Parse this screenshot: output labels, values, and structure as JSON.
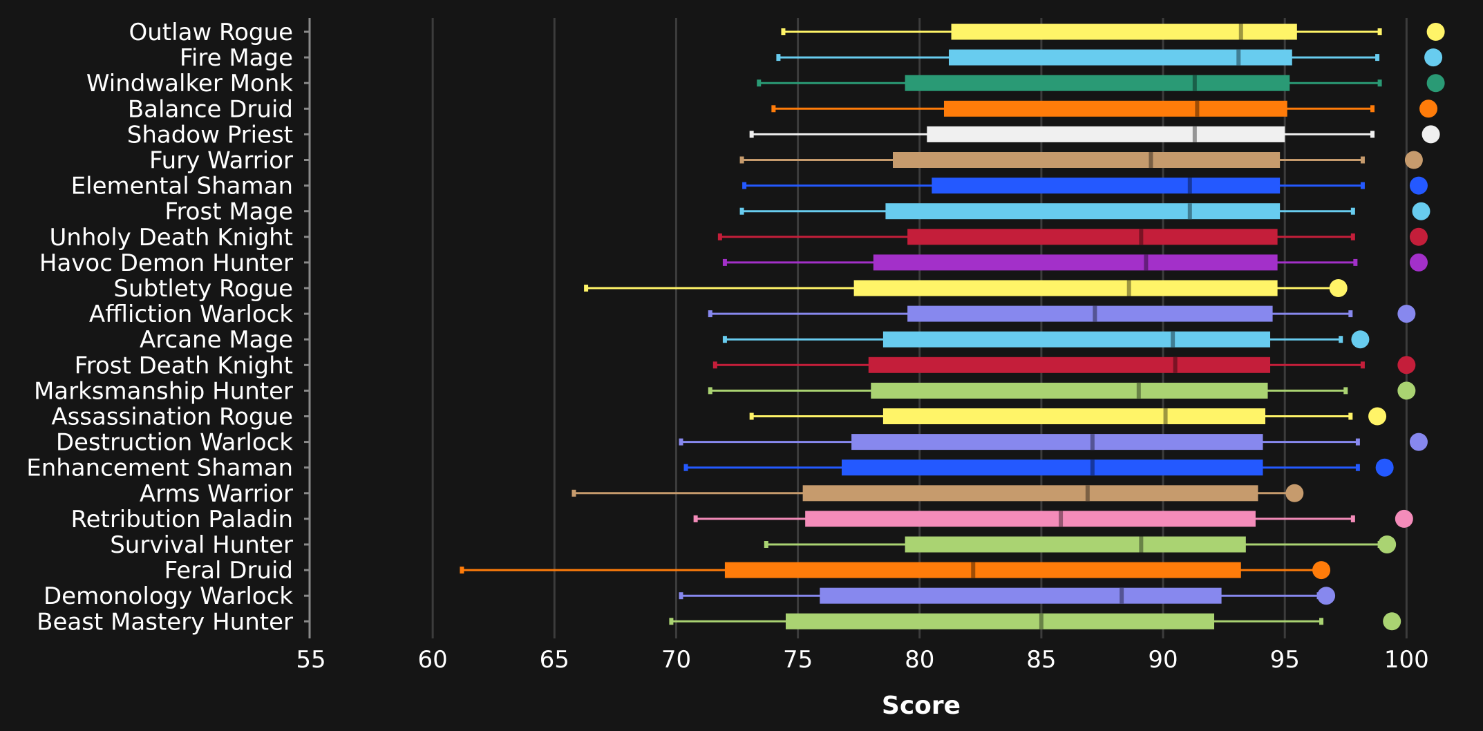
{
  "chart_data": {
    "type": "boxplot",
    "xlabel": "Score",
    "xlim": [
      55,
      101.5
    ],
    "xticks": [
      55,
      60,
      65,
      70,
      75,
      80,
      85,
      90,
      95,
      100
    ],
    "grid": "vertical",
    "series": [
      {
        "name": "Outlaw Rogue",
        "color": "#fff468",
        "min": 74.4,
        "q1": 81.3,
        "median": 93.2,
        "q3": 95.5,
        "max": 98.9,
        "outlier": 101.2
      },
      {
        "name": "Fire Mage",
        "color": "#68ccef",
        "min": 74.2,
        "q1": 81.2,
        "median": 93.1,
        "q3": 95.3,
        "max": 98.8,
        "outlier": 101.1
      },
      {
        "name": "Windwalker Monk",
        "color": "#2a9a75",
        "min": 73.4,
        "q1": 79.4,
        "median": 91.3,
        "q3": 95.2,
        "max": 98.9,
        "outlier": 101.2
      },
      {
        "name": "Balance Druid",
        "color": "#ff7c0a",
        "min": 74.0,
        "q1": 81.0,
        "median": 91.4,
        "q3": 95.1,
        "max": 98.6,
        "outlier": 100.9
      },
      {
        "name": "Shadow Priest",
        "color": "#f0f0f0",
        "min": 73.1,
        "q1": 80.3,
        "median": 91.3,
        "q3": 95.0,
        "max": 98.6,
        "outlier": 101.0
      },
      {
        "name": "Fury Warrior",
        "color": "#c69b6d",
        "min": 72.7,
        "q1": 78.9,
        "median": 89.5,
        "q3": 94.8,
        "max": 98.2,
        "outlier": 100.3
      },
      {
        "name": "Elemental Shaman",
        "color": "#2459ff",
        "min": 72.8,
        "q1": 80.5,
        "median": 91.1,
        "q3": 94.8,
        "max": 98.2,
        "outlier": 100.5
      },
      {
        "name": "Frost Mage",
        "color": "#68ccef",
        "min": 72.7,
        "q1": 78.6,
        "median": 91.1,
        "q3": 94.8,
        "max": 97.8,
        "outlier": 100.6
      },
      {
        "name": "Unholy Death Knight",
        "color": "#c41e3a",
        "min": 71.8,
        "q1": 79.5,
        "median": 89.1,
        "q3": 94.7,
        "max": 97.8,
        "outlier": 100.5
      },
      {
        "name": "Havoc Demon Hunter",
        "color": "#a330c9",
        "min": 72.0,
        "q1": 78.1,
        "median": 89.3,
        "q3": 94.7,
        "max": 97.9,
        "outlier": 100.5
      },
      {
        "name": "Subtlety Rogue",
        "color": "#fff468",
        "min": 66.3,
        "q1": 77.3,
        "median": 88.6,
        "q3": 94.7,
        "max": 97.1,
        "outlier": 97.2
      },
      {
        "name": "Affliction Warlock",
        "color": "#8788ee",
        "min": 71.4,
        "q1": 79.5,
        "median": 87.2,
        "q3": 94.5,
        "max": 97.7,
        "outlier": 100.0
      },
      {
        "name": "Arcane Mage",
        "color": "#68ccef",
        "min": 72.0,
        "q1": 78.5,
        "median": 90.4,
        "q3": 94.4,
        "max": 97.3,
        "outlier": 98.1
      },
      {
        "name": "Frost Death Knight",
        "color": "#c41e3a",
        "min": 71.6,
        "q1": 77.9,
        "median": 90.5,
        "q3": 94.4,
        "max": 98.2,
        "outlier": 100.0
      },
      {
        "name": "Marksmanship Hunter",
        "color": "#aad372",
        "min": 71.4,
        "q1": 78.0,
        "median": 89.0,
        "q3": 94.3,
        "max": 97.5,
        "outlier": 100.0
      },
      {
        "name": "Assassination Rogue",
        "color": "#fff468",
        "min": 73.1,
        "q1": 78.5,
        "median": 90.1,
        "q3": 94.2,
        "max": 97.7,
        "outlier": 98.8
      },
      {
        "name": "Destruction Warlock",
        "color": "#8788ee",
        "min": 70.2,
        "q1": 77.2,
        "median": 87.1,
        "q3": 94.1,
        "max": 98.0,
        "outlier": 100.5
      },
      {
        "name": "Enhancement Shaman",
        "color": "#2459ff",
        "min": 70.4,
        "q1": 76.8,
        "median": 87.1,
        "q3": 94.1,
        "max": 98.0,
        "outlier": 99.1
      },
      {
        "name": "Arms Warrior",
        "color": "#c69b6d",
        "min": 65.8,
        "q1": 75.2,
        "median": 86.9,
        "q3": 93.9,
        "max": 95.3,
        "outlier": 95.4
      },
      {
        "name": "Retribution Paladin",
        "color": "#f48cba",
        "min": 70.8,
        "q1": 75.3,
        "median": 85.8,
        "q3": 93.8,
        "max": 97.8,
        "outlier": 99.9
      },
      {
        "name": "Survival Hunter",
        "color": "#aad372",
        "min": 73.7,
        "q1": 79.4,
        "median": 89.1,
        "q3": 93.4,
        "max": 98.9,
        "outlier": 99.2
      },
      {
        "name": "Feral Druid",
        "color": "#ff7c0a",
        "min": 61.2,
        "q1": 72.0,
        "median": 82.2,
        "q3": 93.2,
        "max": 96.3,
        "outlier": 96.5
      },
      {
        "name": "Demonology Warlock",
        "color": "#8788ee",
        "min": 70.2,
        "q1": 75.9,
        "median": 88.3,
        "q3": 92.4,
        "max": 96.4,
        "outlier": 96.7
      },
      {
        "name": "Beast Mastery Hunter",
        "color": "#aad372",
        "min": 69.8,
        "q1": 74.5,
        "median": 85.0,
        "q3": 92.1,
        "max": 96.5,
        "outlier": 99.4
      }
    ]
  }
}
